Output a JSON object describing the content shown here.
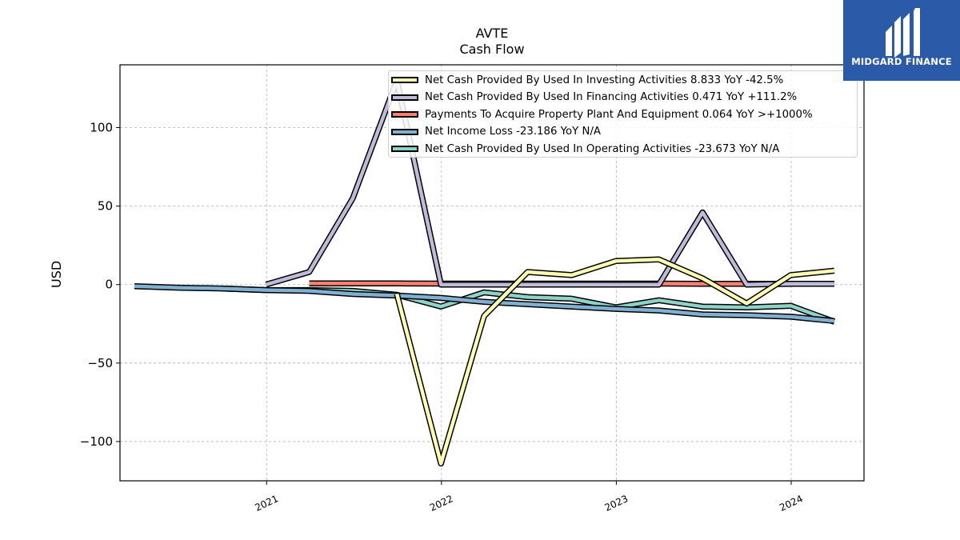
{
  "title": "AVTE",
  "subtitle": "Cash Flow",
  "logo_text": "MIDGARD FINANCE",
  "chart_data": {
    "type": "line",
    "ylabel": "USD",
    "ylim": [
      -125,
      140
    ],
    "xlim": [
      "2020-03-01",
      "2024-06-01"
    ],
    "x_ticks": [
      {
        "date": "2021-01-01",
        "label": "2021"
      },
      {
        "date": "2022-01-01",
        "label": "2022"
      },
      {
        "date": "2023-01-01",
        "label": "2023"
      },
      {
        "date": "2024-01-01",
        "label": "2024"
      }
    ],
    "y_ticks": [
      {
        "value": 100,
        "label": "100"
      },
      {
        "value": 50,
        "label": "50"
      },
      {
        "value": 0,
        "label": "0"
      },
      {
        "value": -50,
        "label": "−50"
      },
      {
        "value": -100,
        "label": "−100"
      }
    ],
    "grid": true,
    "legend_position": "top-right",
    "series": [
      {
        "name": "Net Cash Provided By Used In Operating Activities  -23.673 YoY N/A",
        "color": "#8dd3c7",
        "points": [
          [
            "2020-09-30",
            -2.5
          ],
          [
            "2020-12-31",
            -3.5
          ],
          [
            "2021-03-31",
            -3.5
          ],
          [
            "2021-06-30",
            -4
          ],
          [
            "2021-09-30",
            -6.5
          ],
          [
            "2021-12-31",
            -14
          ],
          [
            "2022-03-31",
            -5
          ],
          [
            "2022-06-30",
            -8
          ],
          [
            "2022-09-30",
            -9
          ],
          [
            "2022-12-31",
            -14.5
          ],
          [
            "2023-03-31",
            -10
          ],
          [
            "2023-06-30",
            -14
          ],
          [
            "2023-09-30",
            -14.5
          ],
          [
            "2023-12-31",
            -13.5
          ],
          [
            "2024-03-31",
            -23.673
          ]
        ]
      },
      {
        "name": "Net Income Loss  -23.186 YoY N/A",
        "color": "#80b1d3",
        "points": [
          [
            "2020-03-31",
            -1
          ],
          [
            "2020-06-30",
            -2
          ],
          [
            "2020-09-30",
            -2.5
          ],
          [
            "2020-12-31",
            -3.5
          ],
          [
            "2021-03-31",
            -4
          ],
          [
            "2021-06-30",
            -6
          ],
          [
            "2021-09-30",
            -7
          ],
          [
            "2021-12-31",
            -8.5
          ],
          [
            "2022-03-31",
            -11
          ],
          [
            "2022-06-30",
            -12.5
          ],
          [
            "2022-09-30",
            -14
          ],
          [
            "2022-12-31",
            -15.5
          ],
          [
            "2023-03-31",
            -16.5
          ],
          [
            "2023-06-30",
            -19
          ],
          [
            "2023-09-30",
            -19.5
          ],
          [
            "2023-12-31",
            -20.5
          ],
          [
            "2024-03-31",
            -23.186
          ]
        ]
      },
      {
        "name": "Payments To Acquire Property Plant And Equipment  0.064 YoY >+1000%",
        "color": "#fb8072",
        "points": [
          [
            "2021-03-31",
            0.7
          ],
          [
            "2021-06-30",
            0.7
          ],
          [
            "2021-09-30",
            0.7
          ],
          [
            "2021-12-31",
            0.6
          ],
          [
            "2022-03-31",
            0.6
          ],
          [
            "2022-06-30",
            0.6
          ],
          [
            "2022-09-30",
            0.6
          ],
          [
            "2022-12-31",
            0.6
          ],
          [
            "2023-03-31",
            0.6
          ],
          [
            "2023-06-30",
            0.5
          ],
          [
            "2023-09-30",
            0.5
          ],
          [
            "2023-12-31",
            0.5
          ]
        ]
      },
      {
        "name": "Net Cash Provided By Used In Financing Activities  0.471 YoY +111.2%",
        "color": "#bebada",
        "points": [
          [
            "2020-12-31",
            0
          ],
          [
            "2021-03-31",
            8
          ],
          [
            "2021-06-30",
            55
          ],
          [
            "2021-09-30",
            130
          ],
          [
            "2021-12-31",
            0
          ],
          [
            "2022-03-31",
            0
          ],
          [
            "2022-06-30",
            0
          ],
          [
            "2022-09-30",
            0
          ],
          [
            "2022-12-31",
            0
          ],
          [
            "2023-03-31",
            0
          ],
          [
            "2023-06-30",
            46
          ],
          [
            "2023-09-30",
            0
          ],
          [
            "2023-12-31",
            0.5
          ],
          [
            "2024-03-31",
            0.471
          ]
        ]
      },
      {
        "name": "Net Cash Provided By Used In Investing Activities  8.833 YoY -42.5%",
        "color": "#ffffb3",
        "points": [
          [
            "2021-09-30",
            -6
          ],
          [
            "2021-12-31",
            -114
          ],
          [
            "2022-03-31",
            -20
          ],
          [
            "2022-06-30",
            8
          ],
          [
            "2022-09-30",
            6
          ],
          [
            "2022-12-31",
            15
          ],
          [
            "2023-03-31",
            16
          ],
          [
            "2023-06-30",
            4
          ],
          [
            "2023-09-30",
            -12
          ],
          [
            "2023-12-31",
            6
          ],
          [
            "2024-03-31",
            8.833
          ]
        ]
      }
    ],
    "legend_order": [
      4,
      3,
      2,
      1,
      0
    ]
  }
}
